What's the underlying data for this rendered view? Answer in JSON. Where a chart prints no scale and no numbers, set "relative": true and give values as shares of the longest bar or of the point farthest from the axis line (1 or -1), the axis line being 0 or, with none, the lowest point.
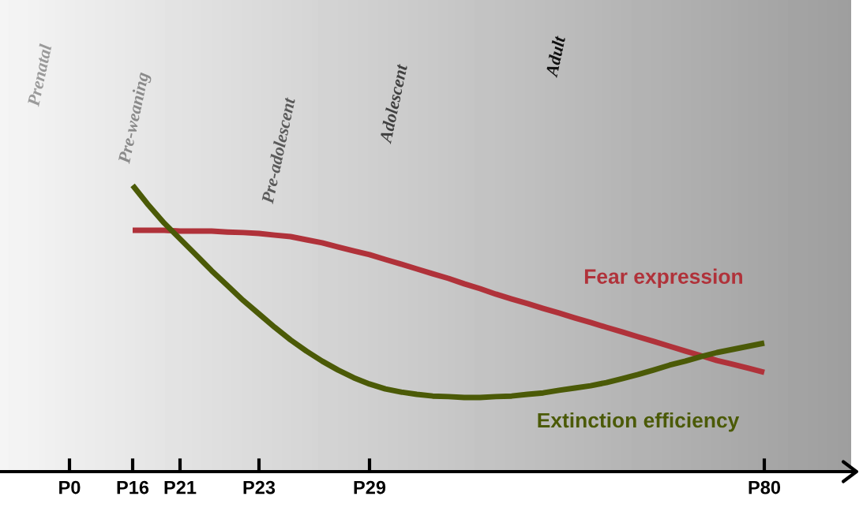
{
  "chart_data": {
    "type": "line",
    "relative": true,
    "tick_labels": "x",
    "grid": false,
    "legend": false,
    "marker": "none",
    "line_style": "solid",
    "categories": [
      null,
      null,
      null,
      null,
      "P0",
      null,
      null,
      null,
      "P16",
      null,
      null,
      "P21",
      null,
      null,
      null,
      null,
      "P23",
      null,
      null,
      null,
      null,
      null,
      null,
      "P29",
      null,
      null,
      null,
      null,
      null,
      null,
      null,
      null,
      null,
      null,
      null,
      null,
      null,
      null,
      null,
      null,
      null,
      null,
      null,
      null,
      null,
      null,
      null,
      null,
      "P80",
      null,
      null,
      null,
      null,
      null
    ],
    "series": [
      {
        "name": "Fear expression",
        "color": "#b0323a",
        "values": [
          null,
          null,
          null,
          null,
          null,
          null,
          null,
          null,
          0.843,
          0.843,
          0.843,
          0.84,
          0.84,
          0.84,
          0.837,
          0.835,
          0.832,
          0.826,
          0.821,
          0.81,
          0.799,
          0.785,
          0.771,
          0.758,
          0.741,
          0.725,
          0.708,
          0.691,
          0.675,
          0.656,
          0.639,
          0.62,
          0.603,
          0.587,
          0.57,
          0.554,
          0.537,
          0.521,
          0.504,
          0.488,
          0.471,
          0.455,
          0.438,
          0.421,
          0.405,
          0.388,
          0.375,
          0.361,
          0.347,
          null,
          null,
          null,
          null,
          null
        ]
      },
      {
        "name": "Extinction efficiency",
        "color": "#4b5a07",
        "values": [
          null,
          null,
          null,
          null,
          null,
          null,
          null,
          null,
          1.0,
          0.931,
          0.868,
          0.813,
          0.758,
          0.702,
          0.65,
          0.598,
          0.551,
          0.504,
          0.46,
          0.421,
          0.386,
          0.355,
          0.328,
          0.306,
          0.289,
          0.278,
          0.27,
          0.264,
          0.262,
          0.259,
          0.259,
          0.262,
          0.264,
          0.27,
          0.275,
          0.284,
          0.292,
          0.3,
          0.311,
          0.325,
          0.339,
          0.355,
          0.372,
          0.386,
          0.402,
          0.416,
          0.427,
          0.438,
          0.449,
          null,
          null,
          null,
          null,
          null
        ]
      }
    ],
    "annotations": [
      "Prenatal",
      "Pre-weaning",
      "Pre-adolescent",
      "Adolescent",
      "Adult"
    ]
  }
}
